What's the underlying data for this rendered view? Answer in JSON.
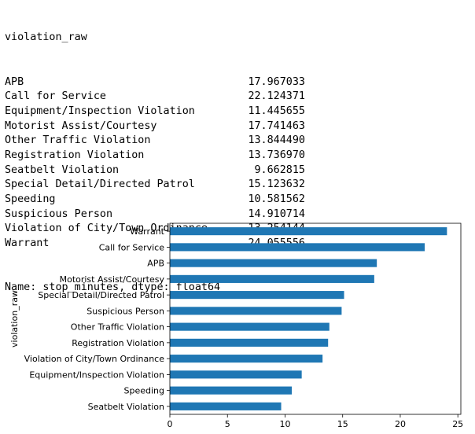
{
  "output": {
    "header": "violation_raw",
    "rows": [
      {
        "label": "APB",
        "value": "17.967033"
      },
      {
        "label": "Call for Service",
        "value": "22.124371"
      },
      {
        "label": "Equipment/Inspection Violation",
        "value": "11.445655"
      },
      {
        "label": "Motorist Assist/Courtesy",
        "value": "17.741463"
      },
      {
        "label": "Other Traffic Violation",
        "value": "13.844490"
      },
      {
        "label": "Registration Violation",
        "value": "13.736970"
      },
      {
        "label": "Seatbelt Violation",
        "value": "9.662815"
      },
      {
        "label": "Special Detail/Directed Patrol",
        "value": "15.123632"
      },
      {
        "label": "Speeding",
        "value": "10.581562"
      },
      {
        "label": "Suspicious Person",
        "value": "14.910714"
      },
      {
        "label": "Violation of City/Town Ordinance",
        "value": "13.254144"
      },
      {
        "label": "Warrant",
        "value": "24.055556"
      }
    ],
    "footer": "Name: stop_minutes, dtype: float64"
  },
  "chart_data": {
    "type": "bar",
    "orientation": "horizontal",
    "categories": [
      "Seatbelt Violation",
      "Speeding",
      "Equipment/Inspection Violation",
      "Violation of City/Town Ordinance",
      "Registration Violation",
      "Other Traffic Violation",
      "Suspicious Person",
      "Special Detail/Directed Patrol",
      "Motorist Assist/Courtesy",
      "APB",
      "Call for Service",
      "Warrant"
    ],
    "values": [
      9.662815,
      10.581562,
      11.445655,
      13.254144,
      13.73697,
      13.84449,
      14.910714,
      15.123632,
      17.741463,
      17.967033,
      22.124371,
      24.055556
    ],
    "ylabel": "violation_raw",
    "xlabel": "",
    "xlim": [
      0,
      25.26
    ],
    "xticks": [
      0,
      5,
      10,
      15,
      20,
      25
    ],
    "bar_color": "#1f77b4",
    "grid": false
  }
}
